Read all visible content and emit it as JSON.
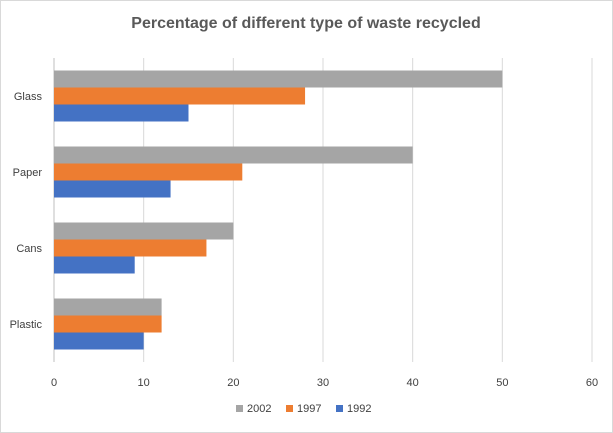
{
  "chart_data": {
    "type": "bar",
    "orientation": "horizontal",
    "title": "Percentage of different type of waste recycled",
    "categories": [
      "Glass",
      "Paper",
      "Cans",
      "Plastic"
    ],
    "series": [
      {
        "name": "2002",
        "color": "#a5a5a5",
        "values": [
          50,
          40,
          20,
          12
        ]
      },
      {
        "name": "1997",
        "color": "#ed7d31",
        "values": [
          28,
          21,
          17,
          12
        ]
      },
      {
        "name": "1992",
        "color": "#4472c4",
        "values": [
          15,
          13,
          9,
          10
        ]
      }
    ],
    "xlim": [
      0,
      60
    ],
    "xticks": [
      0,
      10,
      20,
      30,
      40,
      50,
      60
    ],
    "grid": true,
    "legend": "bottom"
  }
}
